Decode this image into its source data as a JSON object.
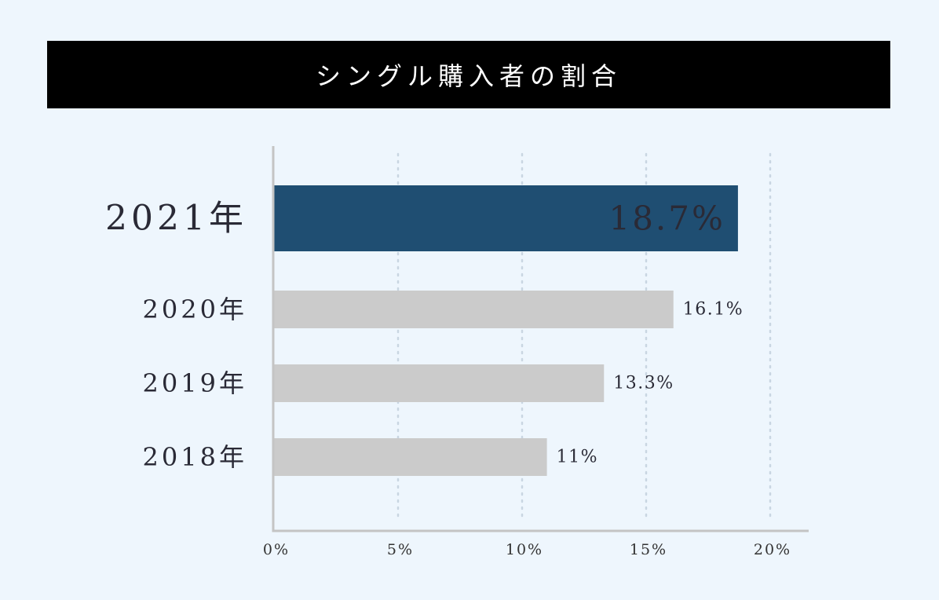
{
  "title": "シングル購入者の割合",
  "colors": {
    "background": "#eef6fd",
    "title_bg": "#000000",
    "highlight_bar": "#1f4e72",
    "bar": "#cbcbcb",
    "axis": "#c4c4c4",
    "grid": "#c9d6e2"
  },
  "chart_data": {
    "type": "bar",
    "orientation": "horizontal",
    "title": "シングル購入者の割合",
    "categories": [
      "2021年",
      "2020年",
      "2019年",
      "2018年"
    ],
    "values": [
      18.7,
      16.1,
      13.3,
      11
    ],
    "value_labels": [
      "18.7%",
      "16.1%",
      "13.3%",
      "11%"
    ],
    "highlight": "2021年",
    "xlim": [
      0,
      20
    ],
    "xticks": [
      0,
      5,
      10,
      15,
      20
    ],
    "xtick_labels": [
      "0%",
      "5%",
      "10%",
      "15%",
      "20%"
    ],
    "grid": "vertical dotted",
    "xlabel": "",
    "ylabel": ""
  }
}
